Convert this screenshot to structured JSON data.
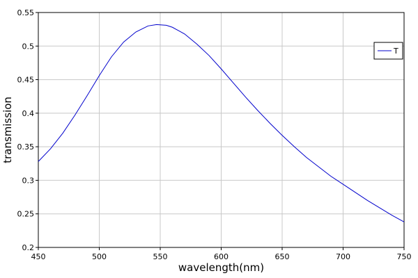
{
  "chart_data": {
    "type": "line",
    "xlabel": "wavelength(nm)",
    "ylabel": "transmission",
    "xlim": [
      450,
      750
    ],
    "ylim": [
      0.2,
      0.55
    ],
    "x_ticks": [
      450,
      500,
      550,
      600,
      650,
      700,
      750
    ],
    "y_ticks": [
      0.2,
      0.25,
      0.3,
      0.35,
      0.4,
      0.45,
      0.5,
      0.55
    ],
    "x_tick_labels": [
      "450",
      "500",
      "550",
      "600",
      "650",
      "700",
      "750"
    ],
    "y_tick_labels": [
      "0.2",
      "0.25",
      "0.3",
      "0.35",
      "0.4",
      "0.45",
      "0.5",
      "0.55"
    ],
    "grid": true,
    "legend_position": "top-right",
    "series": [
      {
        "name": "T",
        "color": "#0000cc",
        "x": [
          450,
          460,
          470,
          480,
          490,
          500,
          510,
          520,
          530,
          540,
          547,
          555,
          560,
          570,
          580,
          590,
          600,
          610,
          620,
          630,
          640,
          650,
          660,
          670,
          680,
          690,
          700,
          710,
          720,
          730,
          740,
          750
        ],
        "y": [
          0.328,
          0.347,
          0.37,
          0.397,
          0.426,
          0.456,
          0.484,
          0.506,
          0.521,
          0.53,
          0.532,
          0.531,
          0.528,
          0.518,
          0.503,
          0.486,
          0.466,
          0.445,
          0.424,
          0.404,
          0.385,
          0.367,
          0.35,
          0.334,
          0.32,
          0.306,
          0.294,
          0.282,
          0.27,
          0.259,
          0.248,
          0.238
        ]
      }
    ]
  }
}
